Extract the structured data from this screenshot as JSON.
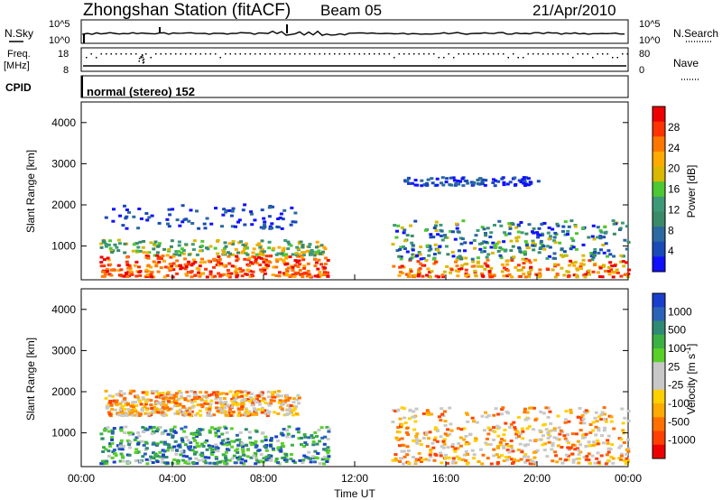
{
  "header": {
    "title": "Zhongshan Station (fitACF)",
    "beam": "Beam 05",
    "date": "21/Apr/2010"
  },
  "summary": {
    "nsky_label": "N.Sky",
    "nsearch_label": "N.Search",
    "freq_label": "Freq.",
    "freq_unit": "[MHz]",
    "nave_label": "Nave",
    "cpid_label": "CPID",
    "cpid_text": "normal (stereo) 152",
    "noise_ticks_left": [
      "10^5",
      "10^0"
    ],
    "noise_ticks_right": [
      "10^5",
      "10^0"
    ],
    "freq_ticks": [
      "18",
      "8"
    ],
    "nave_ticks": [
      "80",
      "0"
    ]
  },
  "chart_data": [
    {
      "type": "heatmap",
      "panel": "power",
      "ylabel": "Slant Range [km]",
      "ylim": [
        180,
        4500
      ],
      "yticks": [
        "4000",
        "3000",
        "2000",
        "1000"
      ],
      "xlim": [
        0,
        24
      ],
      "colorbar": {
        "label": "Power [dB]",
        "ticks": [
          "28",
          "24",
          "20",
          "16",
          "12",
          "8",
          "4"
        ],
        "colors": [
          "#ee0000",
          "#ff3300",
          "#ff7700",
          "#ffaa00",
          "#d8b800",
          "#4cc832",
          "#3c9a78",
          "#3a8a6a",
          "#2a6aa0",
          "#1a4ab8",
          "#1010ff"
        ]
      },
      "regions": [
        {
          "t": [
            0.8,
            10.8
          ],
          "r": [
            280,
            1180
          ],
          "level": "high"
        },
        {
          "t": [
            1.0,
            9.5
          ],
          "r": [
            1450,
            2050
          ],
          "level": "low"
        },
        {
          "t": [
            13.6,
            24.0
          ],
          "r": [
            280,
            1650
          ],
          "level": "mixed"
        },
        {
          "t": [
            14.0,
            20.0
          ],
          "r": [
            2500,
            2700
          ],
          "level": "low"
        }
      ]
    },
    {
      "type": "heatmap",
      "panel": "velocity",
      "ylabel": "Slant Range [km]",
      "ylim": [
        180,
        4500
      ],
      "yticks": [
        "4000",
        "3000",
        "2000",
        "1000"
      ],
      "xlim": [
        0,
        24
      ],
      "xticks": [
        "00:00",
        "04:00",
        "08:00",
        "12:00",
        "16:00",
        "20:00",
        "00:00"
      ],
      "xlabel": "Time UT",
      "colorbar": {
        "label": "Velocity [m s",
        "label_sup": "-1",
        "label_end": "]",
        "ticks": [
          "1000",
          "500",
          "100",
          "25",
          "-25",
          "-100",
          "-500",
          "-1000"
        ],
        "colors": [
          "#1a3fcc",
          "#2a64b8",
          "#2e8a72",
          "#3cb043",
          "#58d028",
          "#c8c8c8",
          "#c8c8c8",
          "#ffd000",
          "#ffaa00",
          "#ff7000",
          "#ff4000",
          "#ee0000"
        ]
      },
      "regions": [
        {
          "t": [
            0.8,
            10.8
          ],
          "r": [
            280,
            1180
          ],
          "level": "mixed-blue"
        },
        {
          "t": [
            1.0,
            9.5
          ],
          "r": [
            1450,
            2050
          ],
          "level": "grey-orange"
        },
        {
          "t": [
            13.6,
            24.0
          ],
          "r": [
            280,
            1650
          ],
          "level": "grey-orange"
        }
      ]
    }
  ]
}
